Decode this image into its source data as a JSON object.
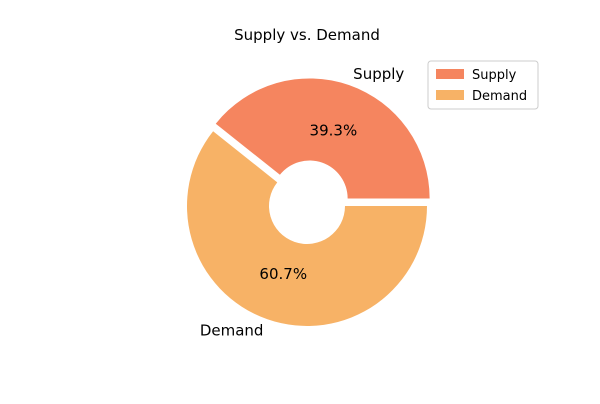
{
  "chart_data": {
    "type": "pie",
    "title": "Supply vs. Demand",
    "categories": [
      "Supply",
      "Demand"
    ],
    "values": [
      39.3,
      60.7
    ],
    "percent_labels": [
      "39.3%",
      "60.7%"
    ],
    "colors": [
      "#f5855f",
      "#f7b266"
    ],
    "legend": {
      "placement": "top-right",
      "entries": [
        "Supply",
        "Demand"
      ]
    }
  }
}
